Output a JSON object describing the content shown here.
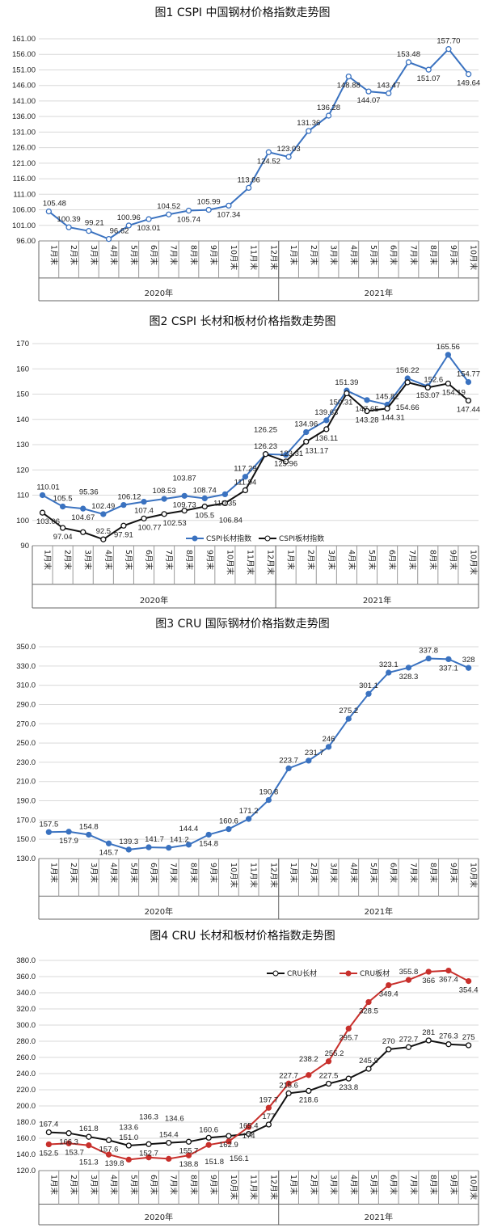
{
  "chart_data": [
    {
      "type": "line",
      "title": "图1  CSPI 中国钢材价格指数走势图",
      "categories": [
        "1月末",
        "2月末",
        "3月末",
        "4月末",
        "5月末",
        "6月末",
        "7月末",
        "8月末",
        "9月末",
        "10月末",
        "11月末",
        "12月末",
        "1月末",
        "2月末",
        "3月末",
        "4月末",
        "5月末",
        "6月末",
        "7月末",
        "8月末",
        "9月末",
        "10月末"
      ],
      "groups": [
        {
          "label": "2020年",
          "count": 12
        },
        {
          "label": "2021年",
          "count": 10
        }
      ],
      "yticks": [
        "96.00",
        "101.00",
        "106.00",
        "111.00",
        "116.00",
        "121.00",
        "126.00",
        "131.00",
        "136.00",
        "141.00",
        "146.00",
        "151.00",
        "156.00",
        "161.00"
      ],
      "ylim": [
        96,
        161
      ],
      "grid": true,
      "series": [
        {
          "color": "#3a72c0",
          "marker": "hollow-circle",
          "values": [
            105.48,
            100.39,
            99.21,
            96.62,
            100.96,
            103.01,
            104.52,
            105.74,
            105.99,
            107.34,
            113.06,
            124.52,
            123.03,
            131.36,
            136.28,
            148.88,
            144.07,
            143.47,
            153.48,
            151.07,
            157.7,
            149.64
          ],
          "labels": [
            "105.48",
            "100.39",
            "99.21",
            "96.62",
            "100.96",
            "103.01",
            "104.52",
            "105.74",
            "105.99",
            "107.34",
            "113.06",
            "124.52",
            "123.03",
            "131.36",
            "136.28",
            "148.88",
            "144.07",
            "143.47",
            "153.48",
            "151.07",
            "157.70",
            "149.64"
          ]
        }
      ]
    },
    {
      "type": "line",
      "title": "图2  CSPI 长材和板材价格指数走势图",
      "categories": [
        "1月末",
        "2月末",
        "3月末",
        "4月末",
        "5月末",
        "6月末",
        "7月末",
        "8月末",
        "9月末",
        "10月末",
        "11月末",
        "12月末",
        "1月末",
        "2月末",
        "3月末",
        "4月末",
        "5月末",
        "6月末",
        "7月末",
        "8月末",
        "9月末",
        "10月末"
      ],
      "groups": [
        {
          "label": "2020年",
          "count": 12
        },
        {
          "label": "2021年",
          "count": 10
        }
      ],
      "yticks": [
        "90",
        "100",
        "110",
        "120",
        "130",
        "140",
        "150",
        "160",
        "170"
      ],
      "ylim": [
        90,
        170
      ],
      "grid": true,
      "legend_position": "bottom-center-inside",
      "series": [
        {
          "name": "CSPI长材指数",
          "color": "#3a72c0",
          "marker": "filled-circle",
          "values": [
            110.01,
            105.5,
            104.67,
            102.49,
            106.12,
            107.4,
            108.53,
            109.73,
            108.74,
            110.35,
            117.29,
            126.23,
            125.96,
            134.96,
            139.63,
            151.39,
            147.65,
            145.82,
            156.22,
            153.07,
            165.56,
            154.77
          ],
          "labels": [
            "110.01",
            "105.5",
            "104.67",
            "102.49",
            "106.12",
            "107.4",
            "108.53",
            "109.73",
            "108.74",
            "110.35",
            "117.29",
            "126.23",
            "125.96",
            "134.96",
            "139.63",
            "151.39",
            "147.65",
            "145.82",
            "156.22",
            "153.07",
            "165.56",
            "154.77"
          ]
        },
        {
          "name": "CSPI板材指数",
          "color": "#111111",
          "marker": "hollow-circle",
          "values": [
            103.06,
            97.04,
            95.36,
            92.5,
            97.91,
            100.77,
            102.53,
            103.87,
            105.5,
            106.84,
            111.94,
            126.25,
            123.31,
            131.17,
            136.11,
            150.31,
            143.28,
            144.31,
            154.66,
            152.6,
            154.19,
            147.44
          ],
          "labels": [
            "103.06",
            "97.04",
            "95.36",
            "92.5",
            "97.91",
            "100.77",
            "102.53",
            "103.87",
            "105.5",
            "106.84",
            "111.94",
            "126.25",
            "123.31",
            "131.17",
            "136.11",
            "150.31",
            "143.28",
            "144.31",
            "154.66",
            "152.6",
            "154.19",
            "147.44"
          ]
        }
      ]
    },
    {
      "type": "line",
      "title": "图3  CRU 国际钢材价格指数走势图",
      "categories": [
        "1月末",
        "2月末",
        "3月末",
        "4月末",
        "5月末",
        "6月末",
        "7月末",
        "8月末",
        "9月末",
        "10月末",
        "11月末",
        "12月末",
        "1月末",
        "2月末",
        "3月末",
        "4月末",
        "5月末",
        "6月末",
        "7月末",
        "8月末",
        "9月末",
        "10月末"
      ],
      "groups": [
        {
          "label": "2020年",
          "count": 12
        },
        {
          "label": "2021年",
          "count": 10
        }
      ],
      "yticks": [
        "130.0",
        "150.0",
        "170.0",
        "190.0",
        "210.0",
        "230.0",
        "250.0",
        "270.0",
        "290.0",
        "310.0",
        "330.0",
        "350.0"
      ],
      "ylim": [
        130,
        350
      ],
      "grid": true,
      "series": [
        {
          "color": "#3a72c0",
          "marker": "filled-circle",
          "values": [
            157.5,
            157.9,
            154.8,
            145.7,
            139.3,
            141.7,
            141.2,
            144.4,
            154.8,
            160.6,
            171.2,
            190.8,
            223.7,
            231.7,
            246,
            275.2,
            301.1,
            323.1,
            328.3,
            337.8,
            337.1,
            328
          ],
          "labels": [
            "157.5",
            "157.9",
            "154.8",
            "145.7",
            "139.3",
            "141.7",
            "141.2",
            "144.4",
            "154.8",
            "160.6",
            "171.2",
            "190.8",
            "223.7",
            "231.7",
            "246",
            "275.2",
            "301.1",
            "323.1",
            "328.3",
            "337.8",
            "337.1",
            "328"
          ]
        }
      ]
    },
    {
      "type": "line",
      "title": "图4  CRU 长材和板材价格指数走势图",
      "categories": [
        "1月末",
        "2月末",
        "3月末",
        "4月末",
        "5月末",
        "6月末",
        "7月末",
        "8月末",
        "9月末",
        "10月末",
        "11月末",
        "12月末",
        "1月末",
        "2月末",
        "3月末",
        "4月末",
        "5月末",
        "6月末",
        "7月末",
        "8月末",
        "9月末",
        "10月末"
      ],
      "groups": [
        {
          "label": "2020年",
          "count": 12
        },
        {
          "label": "2021年",
          "count": 10
        }
      ],
      "yticks": [
        "120.0",
        "140.0",
        "160.0",
        "180.0",
        "200.0",
        "220.0",
        "240.0",
        "260.0",
        "280.0",
        "300.0",
        "320.0",
        "340.0",
        "360.0",
        "380.0"
      ],
      "ylim": [
        120,
        380
      ],
      "grid": true,
      "legend_position": "top-right",
      "series": [
        {
          "name": "CRU长材",
          "color": "#111111",
          "marker": "hollow-circle",
          "values": [
            167.4,
            166.3,
            161.8,
            157.6,
            151.0,
            152.7,
            154.4,
            155.7,
            160.6,
            162.9,
            165.4,
            177,
            215.6,
            218.6,
            227.5,
            233.8,
            245.9,
            270,
            272.7,
            281,
            276.3,
            275
          ],
          "labels": [
            "167.4",
            "166.3",
            "161.8",
            "157.6",
            "151.0",
            "152.7",
            "154.4",
            "155.7",
            "160.6",
            "162.9",
            "165.4",
            "177",
            "215.6",
            "218.6",
            "227.5",
            "233.8",
            "245.9",
            "270",
            "272.7",
            "281",
            "276.3",
            "275"
          ]
        },
        {
          "name": "CRU板材",
          "color": "#c8302c",
          "marker": "filled-circle",
          "values": [
            152.5,
            153.7,
            151.3,
            139.8,
            133.6,
            136.3,
            134.6,
            138.8,
            151.8,
            156.1,
            174,
            197.7,
            227.7,
            238.2,
            255.2,
            295.7,
            328.5,
            349.4,
            355.8,
            366,
            367.4,
            354.4
          ],
          "labels": [
            "152.5",
            "153.7",
            "151.3",
            "139.8",
            "133.6",
            "136.3",
            "134.6",
            "138.8",
            "151.8",
            "156.1",
            "174",
            "197.7",
            "227.7",
            "238.2",
            "255.2",
            "295.7",
            "328.5",
            "349.4",
            "355.8",
            "366",
            "367.4",
            "354.4"
          ]
        }
      ]
    }
  ]
}
